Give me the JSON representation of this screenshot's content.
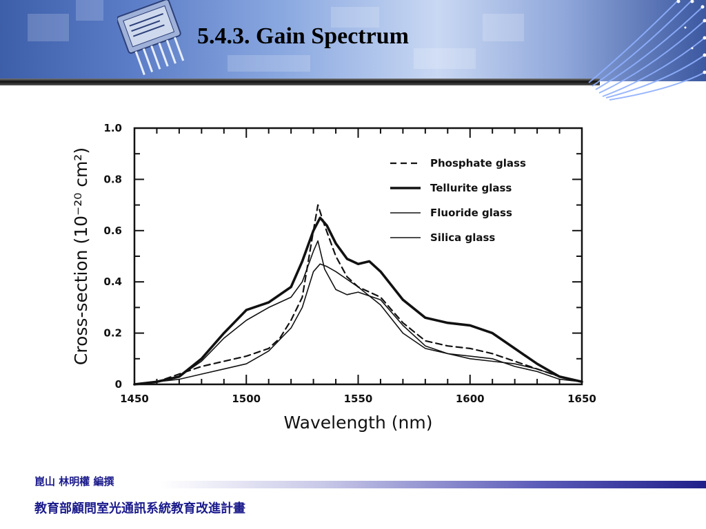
{
  "slide": {
    "title": "5.4.3. Gain Spectrum",
    "footer_author": "崑山    林明權  編撰",
    "footer_program": "教育部顧問室光通訊系統教育改進計畫",
    "colors": {
      "banner": "#5a7bc6",
      "footer_text": "#1a1a8c",
      "footer_bar": "#20208a"
    },
    "icons": [
      "optical-transceiver-icon",
      "fiber-bundle-icon"
    ]
  },
  "chart_data": {
    "type": "line",
    "xlabel": "Wavelength (nm)",
    "ylabel": "Cross-section (10⁻²⁰ cm²)",
    "xlim": [
      1450,
      1650
    ],
    "ylim": [
      0,
      1.0
    ],
    "xticks": [
      1450,
      1500,
      1550,
      1600,
      1650
    ],
    "yticks": [
      0,
      0.2,
      0.4,
      0.6,
      0.8,
      1.0
    ],
    "ytick_labels": [
      "0",
      "0.2",
      "0.4",
      "0.6",
      "0.8",
      "1.0"
    ],
    "legend_position": "top-right",
    "series": [
      {
        "name": "Phosphate glass",
        "style": "dashed",
        "x": [
          1450,
          1460,
          1470,
          1480,
          1490,
          1500,
          1510,
          1515,
          1520,
          1525,
          1530,
          1532,
          1535,
          1540,
          1545,
          1550,
          1560,
          1570,
          1580,
          1590,
          1600,
          1610,
          1620,
          1630,
          1640,
          1650
        ],
        "y": [
          0.0,
          0.01,
          0.04,
          0.07,
          0.09,
          0.11,
          0.14,
          0.18,
          0.25,
          0.34,
          0.6,
          0.7,
          0.62,
          0.5,
          0.42,
          0.38,
          0.34,
          0.24,
          0.17,
          0.15,
          0.14,
          0.12,
          0.09,
          0.06,
          0.03,
          0.01
        ]
      },
      {
        "name": "Tellurite glass",
        "style": "thick",
        "x": [
          1450,
          1460,
          1470,
          1480,
          1490,
          1500,
          1510,
          1520,
          1525,
          1530,
          1533,
          1536,
          1540,
          1545,
          1550,
          1555,
          1560,
          1570,
          1580,
          1590,
          1600,
          1610,
          1620,
          1630,
          1640,
          1650
        ],
        "y": [
          0.0,
          0.01,
          0.03,
          0.1,
          0.2,
          0.29,
          0.32,
          0.38,
          0.48,
          0.6,
          0.65,
          0.62,
          0.55,
          0.49,
          0.47,
          0.48,
          0.44,
          0.33,
          0.26,
          0.24,
          0.23,
          0.2,
          0.14,
          0.08,
          0.03,
          0.01
        ]
      },
      {
        "name": "Fluoride glass",
        "style": "thin",
        "x": [
          1450,
          1460,
          1470,
          1480,
          1490,
          1500,
          1510,
          1520,
          1525,
          1530,
          1532,
          1535,
          1540,
          1545,
          1550,
          1560,
          1570,
          1580,
          1590,
          1600,
          1610,
          1620,
          1630,
          1640,
          1650
        ],
        "y": [
          0.0,
          0.01,
          0.03,
          0.09,
          0.18,
          0.25,
          0.3,
          0.34,
          0.4,
          0.52,
          0.56,
          0.45,
          0.37,
          0.35,
          0.36,
          0.33,
          0.23,
          0.15,
          0.12,
          0.11,
          0.1,
          0.07,
          0.05,
          0.02,
          0.01
        ]
      },
      {
        "name": "Silica glass",
        "style": "thin",
        "x": [
          1450,
          1460,
          1470,
          1480,
          1490,
          1500,
          1510,
          1520,
          1525,
          1530,
          1533,
          1536,
          1540,
          1545,
          1550,
          1560,
          1570,
          1580,
          1590,
          1600,
          1610,
          1620,
          1630,
          1640,
          1650
        ],
        "y": [
          0.0,
          0.01,
          0.02,
          0.04,
          0.06,
          0.08,
          0.13,
          0.22,
          0.3,
          0.44,
          0.47,
          0.46,
          0.44,
          0.41,
          0.38,
          0.31,
          0.2,
          0.14,
          0.12,
          0.1,
          0.09,
          0.08,
          0.06,
          0.03,
          0.01
        ]
      }
    ]
  }
}
